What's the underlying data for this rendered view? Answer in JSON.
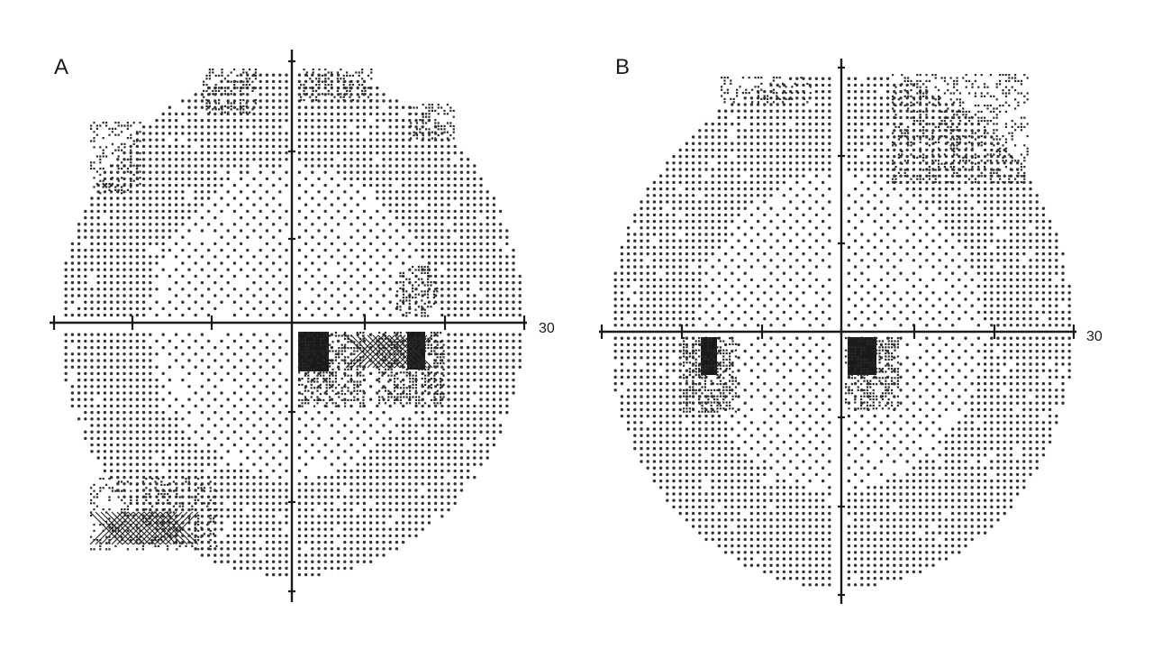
{
  "figure": {
    "panels": [
      {
        "id": "A",
        "label": "A",
        "scale_label": "30",
        "field": "left-eye",
        "defects": [
          {
            "kind": "dense",
            "region": "inferior-nasal-paracentral"
          },
          {
            "kind": "dense",
            "region": "inferior-blind-spot"
          },
          {
            "kind": "mild",
            "region": "superior-periphery"
          },
          {
            "kind": "moderate",
            "region": "inferior-temporal-periphery"
          }
        ]
      },
      {
        "id": "B",
        "label": "B",
        "scale_label": "30",
        "field": "right-eye",
        "defects": [
          {
            "kind": "dense",
            "region": "inferior-blind-spot"
          },
          {
            "kind": "dense",
            "region": "inferior-paracentral"
          },
          {
            "kind": "mild",
            "region": "superior-temporal-periphery"
          }
        ]
      }
    ],
    "colors": {
      "ink": "#1a1a1a",
      "dot": "#333333",
      "background": "#ffffff"
    }
  }
}
